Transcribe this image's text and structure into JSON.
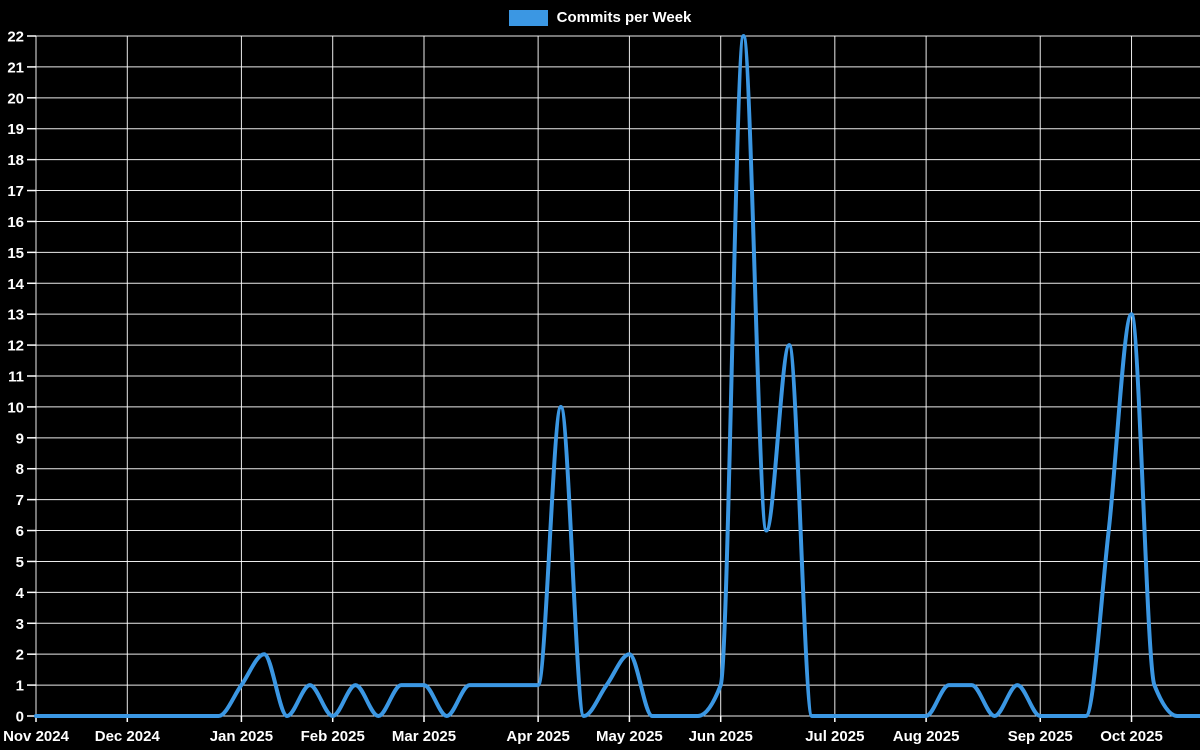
{
  "chart_data": {
    "type": "line",
    "title": "Commits per Week",
    "legend_label": "Commits per Week",
    "legend_position": "top",
    "xlabel": "",
    "ylabel": "",
    "x_unit": "week",
    "x_range_text": "Nov 2024 - Oct 2025",
    "x_tick_labels": [
      "Nov 2024",
      "Dec 2024",
      "Jan 2025",
      "Feb 2025",
      "Mar 2025",
      "Apr 2025",
      "May 2025",
      "Jun 2025",
      "Jul 2025",
      "Aug 2025",
      "Sep 2025",
      "Oct 2025"
    ],
    "x_tick_week_indices": [
      0,
      4,
      9,
      13,
      17,
      22,
      26,
      30,
      35,
      39,
      44,
      48
    ],
    "series": [
      {
        "name": "Commits per Week",
        "values": [
          0,
          0,
          0,
          0,
          0,
          0,
          0,
          0,
          0,
          1,
          2,
          0,
          1,
          0,
          1,
          0,
          1,
          1,
          0,
          1,
          1,
          1,
          1,
          10,
          0,
          1,
          2,
          0,
          0,
          0,
          1,
          22,
          6,
          12,
          0,
          0,
          0,
          0,
          0,
          0,
          1,
          1,
          0,
          1,
          0,
          0,
          0,
          6,
          13,
          1,
          0,
          0
        ]
      }
    ],
    "ylim": [
      0,
      22
    ],
    "y_tick_step": 1,
    "grid": true,
    "smoothing": "monotone",
    "colors": {
      "line": "#3b97e3",
      "background": "#000000",
      "grid": "#ffffff",
      "text": "#ffffff"
    }
  }
}
